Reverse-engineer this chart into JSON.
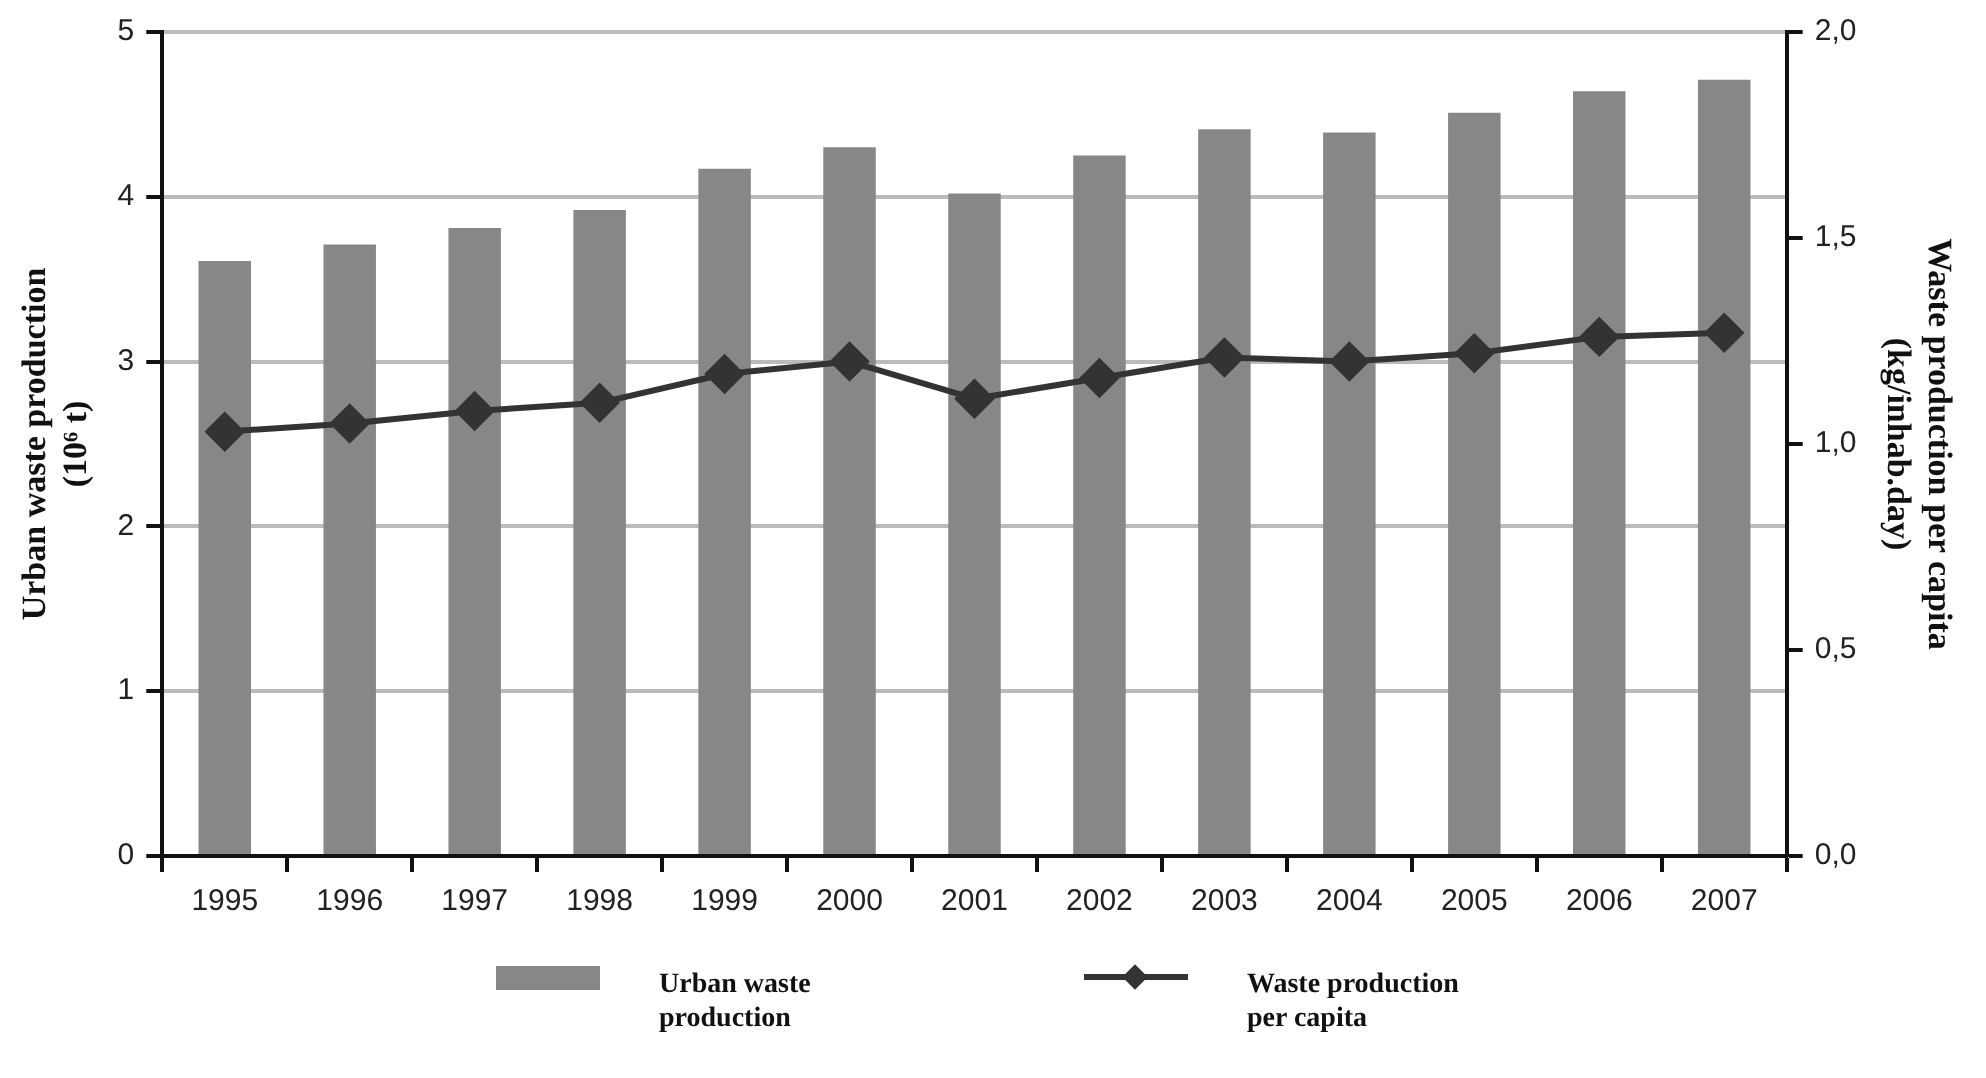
{
  "chart_data": {
    "type": "bar",
    "ylabel": "Urban waste production (10⁶ t)",
    "y2label": "Waste production per capita (kg/inhab.day)",
    "categories": [
      "1995",
      "1996",
      "1997",
      "1998",
      "1999",
      "2000",
      "2001",
      "2002",
      "2003",
      "2004",
      "2005",
      "2006",
      "2007"
    ],
    "series": [
      {
        "name": "Urban waste production",
        "color": "#878787",
        "values": [
          3.61,
          3.71,
          3.81,
          3.92,
          4.17,
          4.3,
          4.02,
          4.25,
          4.41,
          4.39,
          4.51,
          4.64,
          4.71
        ]
      },
      {
        "name": "Waste production per capita",
        "type": "line",
        "axis": "y2",
        "color": "#333333",
        "marker": "diamond",
        "values": [
          1.03,
          1.05,
          1.08,
          1.1,
          1.17,
          1.2,
          1.11,
          1.16,
          1.21,
          1.2,
          1.22,
          1.26,
          1.27
        ]
      }
    ],
    "ylim": [
      0,
      5
    ],
    "yticks": [
      0,
      1,
      2,
      3,
      4,
      5
    ],
    "y2lim": [
      0,
      2
    ],
    "y2ticks": [
      {
        "value": 0,
        "label": "0,0"
      },
      {
        "value": 0.5,
        "label": "0,5"
      },
      {
        "value": 1,
        "label": "1,0"
      },
      {
        "value": 1.5,
        "label": "1,5"
      },
      {
        "value": 2,
        "label": "2,0"
      }
    ],
    "grid": "y",
    "legend": "bottom"
  }
}
